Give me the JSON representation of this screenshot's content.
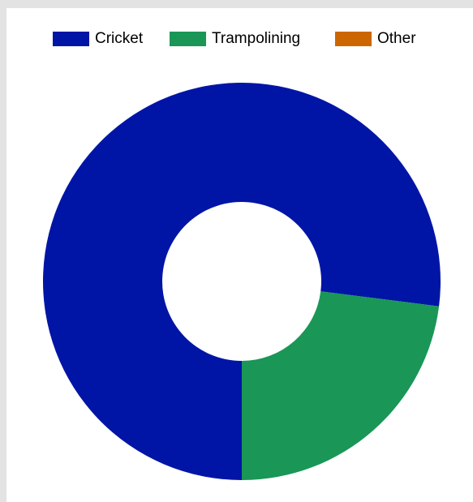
{
  "chart_data": {
    "type": "pie",
    "donut": true,
    "title": "",
    "categories": [
      "Cricket",
      "Trampolining",
      "Other"
    ],
    "values": [
      77,
      23,
      0
    ],
    "colors": [
      "#0015a6",
      "#1a9657",
      "#cc6600"
    ],
    "legend_position": "top"
  }
}
